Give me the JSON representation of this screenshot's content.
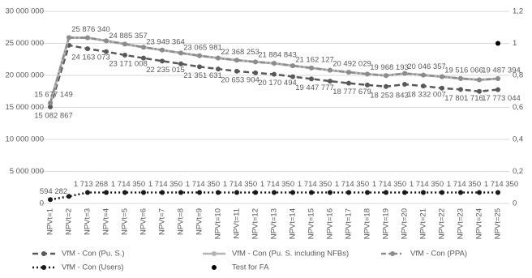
{
  "chart_data": {
    "type": "line",
    "categories": [
      "NPVt=1",
      "NPVt=2",
      "NPVt=3",
      "NPVt=4",
      "NPVt=5",
      "NPVt=6",
      "NPVt=7",
      "NPVt=8",
      "NPVt=9",
      "NPVt=10",
      "NPVt=11",
      "NPVt=12",
      "NPVt=13",
      "NPVt=14",
      "NPVt=15",
      "NPVt=16",
      "NPVt=17",
      "NPVt=18",
      "NPVt=19",
      "NPVt=20",
      "NPVt=21",
      "NPVt=22",
      "NPVt=23",
      "NPVt=24",
      "NPVt=25"
    ],
    "ylim": [
      0,
      30000000
    ],
    "yticks": [
      0,
      {
        "value": 5000000,
        "label": "5 000 000"
      },
      {
        "value": 10000000,
        "label": "10 000 000"
      },
      {
        "value": 15000000,
        "label": "15 000 000"
      },
      {
        "value": 20000000,
        "label": "20 000 000"
      },
      {
        "value": 25000000,
        "label": "25 000 000"
      },
      {
        "value": 30000000,
        "label": "30 000 000"
      }
    ],
    "y2lim": [
      0,
      1.2
    ],
    "y2ticks": [
      0,
      {
        "value": 0.2,
        "label": "0,2"
      },
      {
        "value": 0.4,
        "label": "0,4"
      },
      {
        "value": 0.6,
        "label": "0,6"
      },
      {
        "value": 0.8,
        "label": "0,8"
      },
      {
        "value": 1,
        "label": "1"
      },
      {
        "value": 1.2,
        "label": "1,2"
      }
    ],
    "grid": true,
    "legend": "bottom",
    "series": [
      {
        "name": "VfM - Con (Pu. S.)",
        "color": "#595959",
        "line_style": "dashed",
        "label_side": "below",
        "values": [
          15082867,
          24700000,
          24163073,
          23700000,
          23171008,
          22700000,
          22235015,
          21800000,
          21351631,
          21000000,
          20653904,
          20400000,
          20170494,
          19800000,
          19447777,
          19100000,
          18777679,
          18500000,
          18253843,
          18600000,
          18332007,
          18000000,
          17801716,
          17500000,
          17773044
        ],
        "value_labels": [
          "15 082 867",
          null,
          "24 163 073",
          null,
          "23 171 008",
          null,
          "22 235 015",
          null,
          "21 351 631",
          null,
          "20 653 904",
          null,
          "20 170 494",
          null,
          "19 447 777",
          null,
          "18 777 679",
          null,
          "18 253 843",
          null,
          "18 332 007",
          null,
          "17 801 716",
          null,
          "17 773 044"
        ]
      },
      {
        "name": "VfM - Con (Pu. S. including NFBs)",
        "color": "#b4b4b4",
        "line_style": "solid",
        "label_side": "above",
        "values": [
          15677149,
          25900000,
          25876340,
          25400000,
          24885357,
          24400000,
          23949364,
          23500000,
          23065981,
          22700000,
          22368253,
          22100000,
          21884843,
          21500000,
          21162127,
          20800000,
          20492029,
          20200000,
          19968193,
          20300000,
          20046357,
          19800000,
          19516066,
          19300000,
          19487394
        ],
        "value_labels": [
          "15 677 149",
          null,
          "25 876 340",
          null,
          "24 885 357",
          null,
          "23 949 364",
          null,
          "23 065 981",
          null,
          "22 368 253",
          null,
          "21 884 843",
          null,
          "21 162 127",
          null,
          "20 492 029",
          null,
          "19 968 193",
          null,
          "20 046 357",
          null,
          "19 516 066",
          null,
          "19 487 394"
        ]
      },
      {
        "name": "VfM - Con (PPA)",
        "color": "#8c8c8c",
        "line_style": "dashdot",
        "values": [
          15677149,
          25900000,
          25876340,
          25400000,
          24885357,
          24400000,
          23949364,
          23500000,
          23065981,
          22700000,
          22368253,
          22100000,
          21884843,
          21500000,
          21162127,
          20800000,
          20492029,
          20200000,
          19968193,
          20300000,
          20046357,
          19800000,
          19516066,
          19300000,
          19487394
        ]
      },
      {
        "name": "VfM - Con (Users)",
        "color": "#1a1a1a",
        "line_style": "dotted",
        "label_side": "above",
        "values": [
          594282,
          1100000,
          1713268,
          1714350,
          1714350,
          1714350,
          1714350,
          1714350,
          1714350,
          1714350,
          1714350,
          1714350,
          1714350,
          1714350,
          1714350,
          1714350,
          1714350,
          1714350,
          1714350,
          1714350,
          1714350,
          1714350,
          1714350,
          1714350,
          1714350
        ],
        "value_labels": [
          "594 282",
          null,
          "1 713 268",
          null,
          "1 714 350",
          null,
          "1 714 350",
          null,
          "1 714 350",
          null,
          "1 714 350",
          null,
          "1 714 350",
          null,
          "1 714 350",
          null,
          "1 714 350",
          null,
          "1 714 350",
          null,
          "1 714 350",
          null,
          "1 714 350",
          null,
          "1 714 350"
        ]
      },
      {
        "name": "Test for FA",
        "color": "#000000",
        "line_style": "none",
        "axis": "y2",
        "values": [
          null,
          null,
          null,
          null,
          null,
          null,
          null,
          null,
          null,
          null,
          null,
          null,
          null,
          null,
          null,
          null,
          null,
          null,
          null,
          null,
          null,
          null,
          null,
          null,
          1
        ]
      }
    ]
  }
}
